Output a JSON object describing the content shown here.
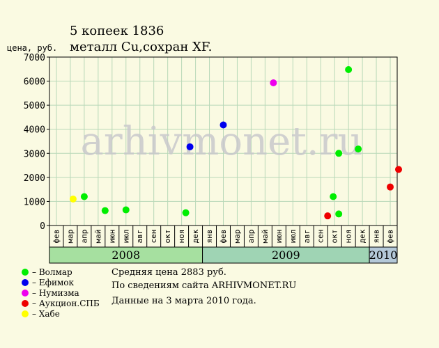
{
  "title": {
    "line1": "5 копеек 1836",
    "line2": "металл Cu,сохран XF."
  },
  "watermark": "arhivmonet.ru",
  "info": {
    "avg": "Средняя цена 2883 руб.",
    "source": "По  сведениям сайта ARHIVMONET.RU",
    "date": "Данные на 3 марта 2010 года."
  },
  "legend": [
    {
      "label": "– Волмар",
      "color": "#00ee00"
    },
    {
      "label": "– Ефимок",
      "color": "#0000ee"
    },
    {
      "label": "– Нумизма",
      "color": "#ee00ee"
    },
    {
      "label": "– Аукцион.СПБ",
      "color": "#ee0000"
    },
    {
      "label": "– Хабе",
      "color": "#ffff00"
    }
  ],
  "chart_data": {
    "type": "scatter",
    "title": "5 копеек 1836",
    "subtitle": "металл Cu,сохран XF.",
    "ylabel": "цена, руб.",
    "ylim": [
      0,
      7000
    ],
    "yticks": [
      0,
      1000,
      2000,
      3000,
      4000,
      5000,
      6000,
      7000
    ],
    "grid": true,
    "x_categories": [
      "фев",
      "мар",
      "апр",
      "май",
      "июн",
      "июл",
      "авг",
      "сен",
      "окт",
      "ноя",
      "дек",
      "янв",
      "фев",
      "мар",
      "апр",
      "май",
      "июн",
      "июл",
      "авг",
      "сен",
      "окт",
      "ноя",
      "дек",
      "янв",
      "фев"
    ],
    "year_bands": [
      {
        "label": "2008",
        "start": 0,
        "end": 10,
        "color": "#a6e0a0"
      },
      {
        "label": "2009",
        "start": 11,
        "end": 22,
        "color": "#9fd4b4"
      },
      {
        "label": "2010",
        "start": 23,
        "end": 24,
        "color": "#b4c8d8"
      }
    ],
    "series": [
      {
        "name": "Волмар",
        "color": "#00ee00",
        "points": [
          {
            "x": 2,
            "y": 1200
          },
          {
            "x": 3.5,
            "y": 620
          },
          {
            "x": 5,
            "y": 650
          },
          {
            "x": 9.3,
            "y": 530
          },
          {
            "x": 19.9,
            "y": 1200
          },
          {
            "x": 20.3,
            "y": 3000
          },
          {
            "x": 20.3,
            "y": 480
          },
          {
            "x": 21,
            "y": 6480
          },
          {
            "x": 21.7,
            "y": 3180
          }
        ]
      },
      {
        "name": "Ефимок",
        "color": "#0000ee",
        "points": [
          {
            "x": 9.6,
            "y": 3270
          },
          {
            "x": 12,
            "y": 4180
          }
        ]
      },
      {
        "name": "Нумизма",
        "color": "#ee00ee",
        "points": [
          {
            "x": 15.6,
            "y": 5930
          }
        ]
      },
      {
        "name": "Аукцион.СПБ",
        "color": "#ee0000",
        "points": [
          {
            "x": 19.5,
            "y": 400
          },
          {
            "x": 24,
            "y": 1600
          },
          {
            "x": 24.6,
            "y": 2330
          }
        ]
      },
      {
        "name": "Хабе",
        "color": "#ffff00",
        "points": [
          {
            "x": 1.2,
            "y": 1100
          }
        ]
      }
    ]
  }
}
